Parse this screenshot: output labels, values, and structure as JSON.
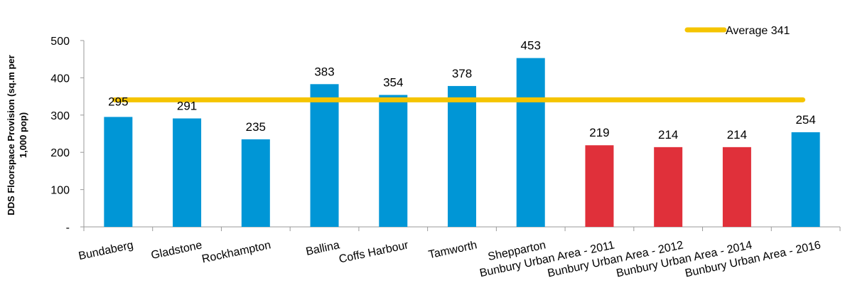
{
  "chart_data": {
    "type": "bar",
    "title": "",
    "ylabel": [
      "DDS Floorspace Provision (sq.m per",
      "1,000 pop)"
    ],
    "xlabel": "",
    "ylim": [
      0,
      500
    ],
    "yticks": [
      {
        "value": 0,
        "label": "-"
      },
      {
        "value": 100,
        "label": "100"
      },
      {
        "value": 200,
        "label": "200"
      },
      {
        "value": 300,
        "label": "300"
      },
      {
        "value": 400,
        "label": "400"
      },
      {
        "value": 500,
        "label": "500"
      }
    ],
    "categories": [
      "Bundaberg",
      "Gladstone",
      "Rockhampton",
      "Ballina",
      "Coffs Harbour",
      "Tamworth",
      "Shepparton",
      "Bunbury Urban Area - 2011",
      "Bunbury Urban Area - 2012",
      "Bunbury Urban Area - 2014",
      "Bunbury Urban Area - 2016"
    ],
    "values": [
      295,
      291,
      235,
      383,
      354,
      378,
      453,
      219,
      214,
      214,
      254
    ],
    "bar_colors": [
      "#0096d6",
      "#0096d6",
      "#0096d6",
      "#0096d6",
      "#0096d6",
      "#0096d6",
      "#0096d6",
      "#e0303a",
      "#e0303a",
      "#e0303a",
      "#0096d6"
    ],
    "average": {
      "value": 341,
      "label": "Average 341",
      "color": "#f5c400"
    },
    "grid": false,
    "legend_position": "top-right"
  }
}
